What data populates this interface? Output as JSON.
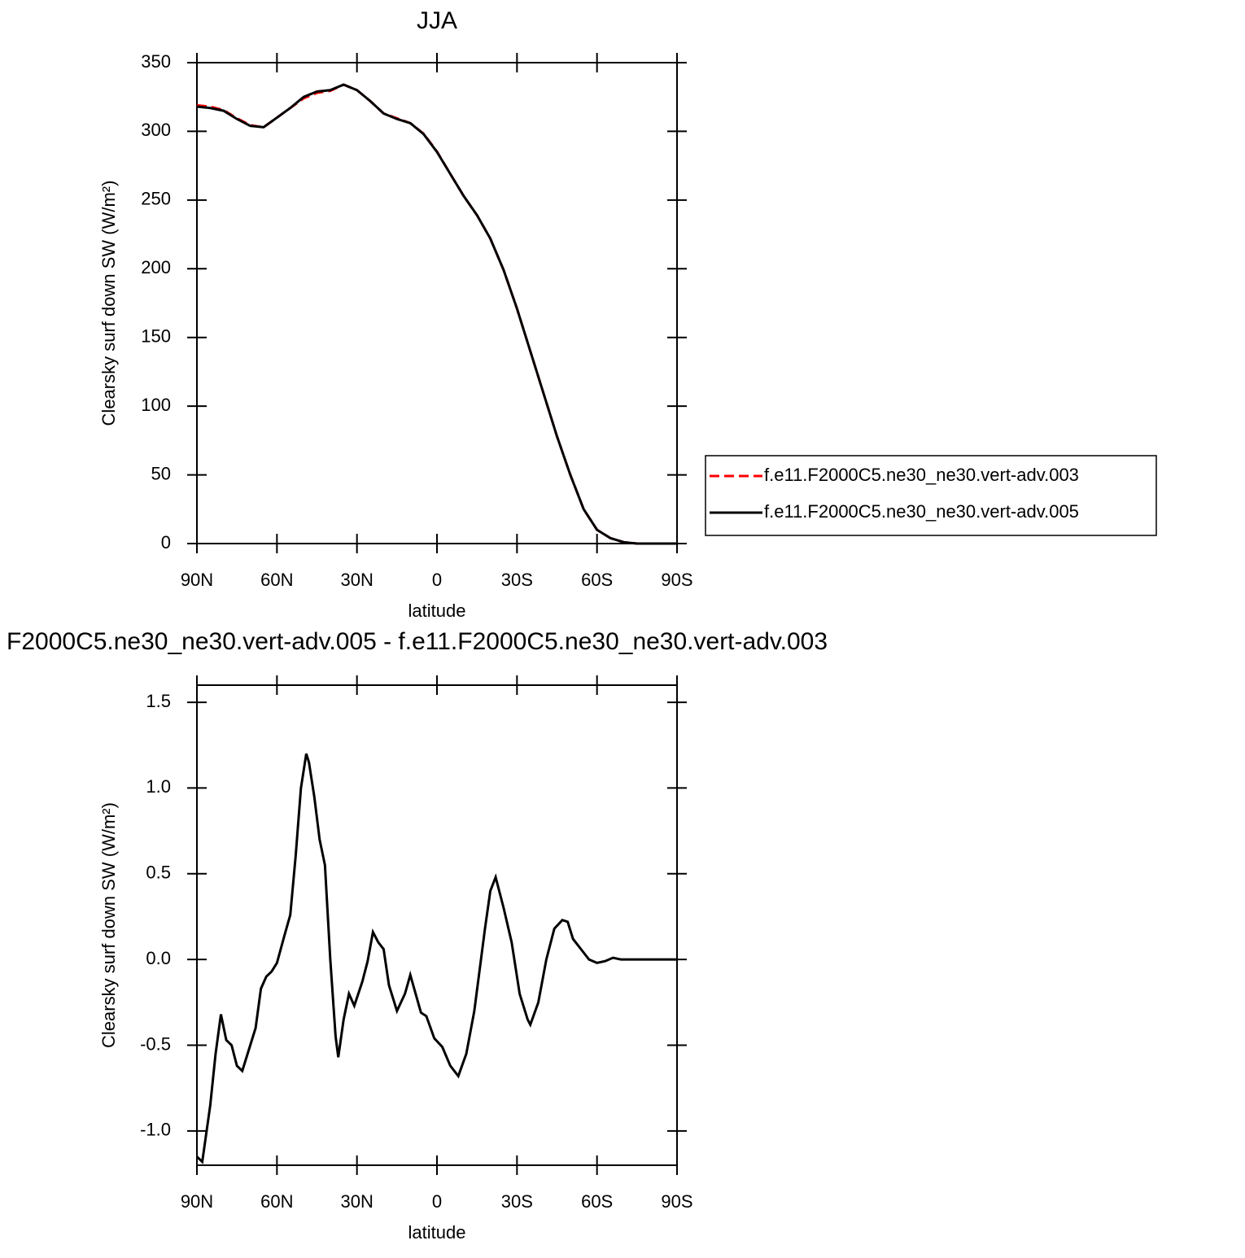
{
  "chart_data": [
    {
      "type": "line",
      "title": "JJA",
      "x_label": "latitude",
      "y_label": "Clearsky surf down SW (W/m²)",
      "x": [
        90,
        85,
        80,
        75,
        70,
        65,
        60,
        55,
        50,
        45,
        40,
        35,
        30,
        25,
        20,
        15,
        10,
        5,
        0,
        -5,
        -10,
        -15,
        -20,
        -25,
        -30,
        -35,
        -40,
        -45,
        -50,
        -55,
        -60,
        -65,
        -70,
        -75,
        -80,
        -85,
        -90
      ],
      "xlim": [
        90,
        -90
      ],
      "xticks": [
        {
          "value": 90,
          "label": "90N"
        },
        {
          "value": 60,
          "label": "60N"
        },
        {
          "value": 30,
          "label": "30N"
        },
        0,
        {
          "value": -30,
          "label": "30S"
        },
        {
          "value": -60,
          "label": "60S"
        },
        {
          "value": -90,
          "label": "90S"
        }
      ],
      "ylim": [
        0,
        350
      ],
      "yticks": [
        0,
        50,
        100,
        150,
        200,
        250,
        300,
        350
      ],
      "legend": "right",
      "series": [
        {
          "name": "f.e11.F2000C5.ne30_ne30.vert-adv.003",
          "color": "#ff0000",
          "dash": "dashed",
          "values": [
            319,
            318,
            315.5,
            309.5,
            304.5,
            303,
            310,
            317,
            324,
            328,
            329.5,
            334,
            330,
            322,
            313,
            309.5,
            306,
            298.3,
            285.3,
            269,
            253,
            239,
            222,
            199,
            171,
            140,
            109,
            78,
            50,
            25,
            10,
            4,
            1,
            0,
            0,
            0,
            0
          ]
        },
        {
          "name": "f.e11.F2000C5.ne30_ne30.vert-adv.005",
          "color": "#000000",
          "dash": "solid",
          "values": [
            318,
            317,
            315,
            309,
            304,
            303,
            310,
            317,
            325,
            329,
            330,
            334,
            330,
            322,
            313,
            309,
            306,
            298,
            285,
            269,
            253,
            239,
            222,
            199,
            171,
            140,
            109,
            78,
            50,
            25,
            10,
            4,
            1,
            0,
            0,
            0,
            0
          ]
        }
      ]
    },
    {
      "type": "line",
      "title": "F2000C5.ne30_ne30.vert-adv.005 - f.e11.F2000C5.ne30_ne30.vert-adv.003",
      "x_label": "latitude",
      "y_label": "Clearsky surf down SW (W/m²)",
      "x": [
        90,
        88,
        85,
        83,
        81,
        79,
        77,
        75,
        73,
        70,
        68,
        66,
        64,
        62,
        60,
        57,
        55,
        53,
        51,
        49,
        48,
        46,
        44,
        42,
        40,
        38,
        37,
        35,
        33,
        31,
        28,
        26,
        24,
        22,
        20,
        18,
        15,
        12,
        10,
        8,
        6,
        4,
        1,
        -2,
        -5,
        -8,
        -11,
        -14,
        -18,
        -20,
        -22,
        -25,
        -28,
        -31,
        -34,
        -35,
        -38,
        -41,
        -44,
        -47,
        -49,
        -51,
        -54,
        -57,
        -60,
        -63,
        -66,
        -69,
        -75,
        -80,
        -90
      ],
      "xlim": [
        90,
        -90
      ],
      "xticks": [
        {
          "value": 90,
          "label": "90N"
        },
        {
          "value": 60,
          "label": "60N"
        },
        {
          "value": 30,
          "label": "30N"
        },
        0,
        {
          "value": -30,
          "label": "30S"
        },
        {
          "value": -60,
          "label": "60S"
        },
        {
          "value": -90,
          "label": "90S"
        }
      ],
      "ylim": [
        -1.2,
        1.6
      ],
      "yticks": [
        {
          "value": -1,
          "label": "-1.0"
        },
        -0.5,
        {
          "value": 0,
          "label": "0.0"
        },
        0.5,
        {
          "value": 1,
          "label": "1.0"
        },
        1.5
      ],
      "series": [
        {
          "color": "#000000",
          "dash": "solid",
          "values": [
            -1.15,
            -1.18,
            -0.85,
            -0.55,
            -0.32,
            -0.47,
            -0.5,
            -0.62,
            -0.65,
            -0.5,
            -0.4,
            -0.17,
            -0.1,
            -0.07,
            -0.02,
            0.15,
            0.26,
            0.6,
            1.0,
            1.2,
            1.15,
            0.95,
            0.7,
            0.55,
            0.0,
            -0.45,
            -0.57,
            -0.35,
            -0.2,
            -0.27,
            -0.13,
            -0.01,
            0.16,
            0.1,
            0.06,
            -0.15,
            -0.3,
            -0.2,
            -0.09,
            -0.2,
            -0.31,
            -0.33,
            -0.46,
            -0.51,
            -0.62,
            -0.68,
            -0.55,
            -0.3,
            0.18,
            0.4,
            0.48,
            0.3,
            0.1,
            -0.2,
            -0.35,
            -0.38,
            -0.25,
            0.0,
            0.18,
            0.23,
            0.22,
            0.12,
            0.06,
            0.0,
            -0.02,
            -0.01,
            0.01,
            0,
            0,
            0,
            0
          ]
        }
      ]
    }
  ]
}
